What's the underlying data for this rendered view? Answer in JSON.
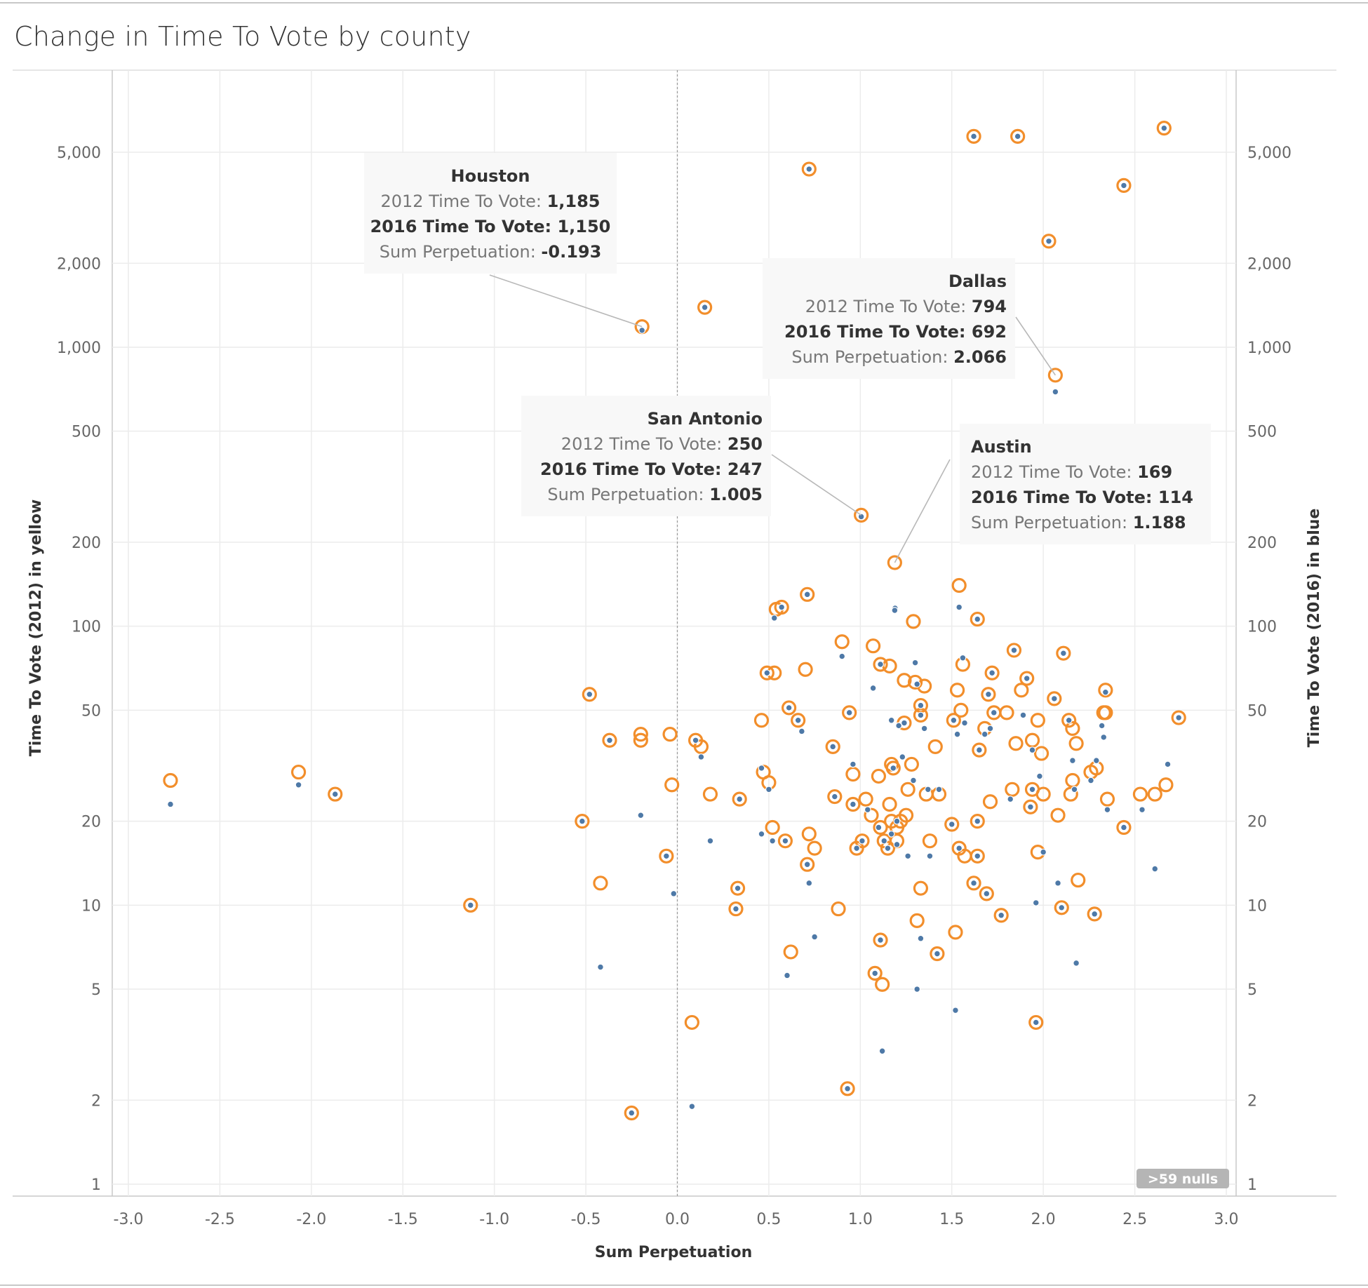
{
  "title": "Change in Time To Vote by county",
  "nulls_badge": ">59 nulls",
  "chart_data": {
    "type": "scatter",
    "title": "Change in Time To Vote by county",
    "xlabel": "Sum Perpetuation",
    "ylabel_left": "Time To Vote (2012) in yellow",
    "ylabel_right": "Time To Vote (2016) in blue",
    "x_range": [
      -3.1,
      3.05
    ],
    "y_scale": "log",
    "y_range": [
      1,
      9000
    ],
    "x_ticks": [
      -3.0,
      -2.5,
      -2.0,
      -1.5,
      -1.0,
      -0.5,
      0.0,
      0.5,
      1.0,
      1.5,
      2.0,
      2.5,
      3.0
    ],
    "x_tick_labels": [
      "-3.0",
      "-2.5",
      "-2.0",
      "-1.5",
      "-1.0",
      "-0.5",
      "0.0",
      "0.5",
      "1.0",
      "1.5",
      "2.0",
      "2.5",
      "3.0"
    ],
    "y_ticks": [
      1,
      2,
      5,
      10,
      20,
      50,
      100,
      200,
      500,
      1000,
      2000,
      5000
    ],
    "y_tick_labels": [
      "1",
      "2",
      "5",
      "10",
      "20",
      "50",
      "100",
      "200",
      "500",
      "1,000",
      "2,000",
      "5,000"
    ],
    "grid": true,
    "colors": {
      "series_2012": "#f28e2b",
      "series_2016": "#4e79a7",
      "reference_line": "#9a9a9a"
    },
    "series": [
      {
        "name": "Time To Vote (2012)",
        "marker": "ring",
        "color": "#f28e2b",
        "points": [
          [
            -2.77,
            28
          ],
          [
            -2.07,
            30
          ],
          [
            -1.87,
            25
          ],
          [
            -1.13,
            10
          ],
          [
            -0.52,
            20
          ],
          [
            -0.48,
            57
          ],
          [
            -0.42,
            12
          ],
          [
            -0.37,
            39
          ],
          [
            -0.25,
            1.8
          ],
          [
            -0.2,
            41
          ],
          [
            -0.2,
            39
          ],
          [
            -0.193,
            1185
          ],
          [
            -0.06,
            15
          ],
          [
            -0.04,
            41
          ],
          [
            -0.03,
            27
          ],
          [
            0.08,
            3.8
          ],
          [
            0.1,
            39
          ],
          [
            0.13,
            37
          ],
          [
            0.15,
            1390
          ],
          [
            0.18,
            25
          ],
          [
            0.32,
            9.7
          ],
          [
            0.33,
            11.5
          ],
          [
            0.34,
            24
          ],
          [
            0.46,
            46
          ],
          [
            0.47,
            30
          ],
          [
            0.5,
            27.5
          ],
          [
            0.49,
            68
          ],
          [
            0.53,
            68
          ],
          [
            0.52,
            19
          ],
          [
            0.54,
            115
          ],
          [
            0.57,
            117
          ],
          [
            0.59,
            17
          ],
          [
            0.61,
            51
          ],
          [
            0.66,
            46
          ],
          [
            0.7,
            70
          ],
          [
            0.71,
            130
          ],
          [
            0.71,
            14
          ],
          [
            0.72,
            18
          ],
          [
            0.75,
            16
          ],
          [
            0.72,
            4350
          ],
          [
            0.62,
            6.8
          ],
          [
            0.85,
            37
          ],
          [
            0.86,
            24.5
          ],
          [
            0.9,
            88
          ],
          [
            0.93,
            2.2
          ],
          [
            0.94,
            49
          ],
          [
            0.96,
            29.5
          ],
          [
            0.96,
            23
          ],
          [
            0.98,
            16
          ],
          [
            1.005,
            250
          ],
          [
            1.01,
            17
          ],
          [
            1.03,
            24
          ],
          [
            1.06,
            21
          ],
          [
            1.07,
            85
          ],
          [
            1.08,
            5.7
          ],
          [
            1.1,
            29
          ],
          [
            1.11,
            19
          ],
          [
            1.11,
            73
          ],
          [
            1.11,
            7.5
          ],
          [
            1.12,
            5.2
          ],
          [
            1.13,
            17
          ],
          [
            1.15,
            16
          ],
          [
            1.16,
            72
          ],
          [
            1.16,
            23
          ],
          [
            1.17,
            32
          ],
          [
            1.18,
            31
          ],
          [
            1.17,
            20
          ],
          [
            1.2,
            19
          ],
          [
            1.2,
            17
          ],
          [
            1.22,
            20
          ],
          [
            1.24,
            64
          ],
          [
            1.24,
            45
          ],
          [
            1.25,
            21
          ],
          [
            1.26,
            26
          ],
          [
            1.188,
            169
          ],
          [
            1.28,
            32
          ],
          [
            1.29,
            104
          ],
          [
            1.3,
            63
          ],
          [
            1.31,
            8.8
          ],
          [
            1.33,
            52
          ],
          [
            1.33,
            48
          ],
          [
            1.33,
            11.5
          ],
          [
            1.35,
            61
          ],
          [
            1.36,
            25
          ],
          [
            1.38,
            17
          ],
          [
            1.41,
            37
          ],
          [
            1.42,
            6.7
          ],
          [
            1.43,
            25
          ],
          [
            1.5,
            19.5
          ],
          [
            1.51,
            46
          ],
          [
            1.52,
            8
          ],
          [
            1.53,
            59
          ],
          [
            1.54,
            140
          ],
          [
            1.54,
            16
          ],
          [
            1.55,
            50
          ],
          [
            1.56,
            73
          ],
          [
            1.57,
            15
          ],
          [
            1.62,
            5700
          ],
          [
            1.62,
            12
          ],
          [
            1.64,
            15
          ],
          [
            1.64,
            20
          ],
          [
            1.64,
            106
          ],
          [
            1.65,
            36
          ],
          [
            1.68,
            43
          ],
          [
            1.69,
            11
          ],
          [
            1.7,
            57
          ],
          [
            1.71,
            23.5
          ],
          [
            1.72,
            68
          ],
          [
            1.73,
            49
          ],
          [
            1.77,
            9.2
          ],
          [
            1.8,
            49
          ],
          [
            1.83,
            26
          ],
          [
            1.85,
            38
          ],
          [
            1.86,
            5700
          ],
          [
            1.88,
            59
          ],
          [
            1.91,
            65
          ],
          [
            1.93,
            22.5
          ],
          [
            1.94,
            26
          ],
          [
            1.94,
            39
          ],
          [
            1.96,
            3.8
          ],
          [
            1.97,
            15.5
          ],
          [
            1.97,
            46
          ],
          [
            1.99,
            35
          ],
          [
            2.0,
            25
          ],
          [
            2.03,
            2400
          ],
          [
            2.06,
            55
          ],
          [
            2.066,
            794
          ],
          [
            2.08,
            21
          ],
          [
            2.1,
            9.8
          ],
          [
            2.11,
            80
          ],
          [
            2.14,
            46
          ],
          [
            2.15,
            25
          ],
          [
            2.16,
            28
          ],
          [
            2.16,
            43
          ],
          [
            2.18,
            38
          ],
          [
            2.19,
            12.3
          ],
          [
            2.26,
            30
          ],
          [
            2.28,
            9.3
          ],
          [
            2.29,
            31
          ],
          [
            2.33,
            49
          ],
          [
            2.34,
            59
          ],
          [
            2.34,
            49
          ],
          [
            2.35,
            24
          ],
          [
            2.44,
            3800
          ],
          [
            2.44,
            19
          ],
          [
            2.53,
            25
          ],
          [
            2.61,
            25
          ],
          [
            2.66,
            6100
          ],
          [
            2.67,
            27
          ],
          [
            2.74,
            47
          ],
          [
            0.88,
            9.7
          ],
          [
            1.84,
            82
          ]
        ]
      },
      {
        "name": "Time To Vote (2016)",
        "marker": "dot",
        "color": "#4e79a7",
        "points": [
          [
            -2.77,
            23
          ],
          [
            -2.07,
            27
          ],
          [
            -1.87,
            25
          ],
          [
            -1.13,
            10
          ],
          [
            -0.52,
            20
          ],
          [
            -0.48,
            57
          ],
          [
            -0.42,
            6
          ],
          [
            -0.37,
            39
          ],
          [
            -0.25,
            1.8
          ],
          [
            -0.2,
            21
          ],
          [
            -0.193,
            1150
          ],
          [
            -0.06,
            15
          ],
          [
            -0.02,
            11
          ],
          [
            0.08,
            1.9
          ],
          [
            0.1,
            39
          ],
          [
            0.13,
            34
          ],
          [
            0.15,
            1390
          ],
          [
            0.18,
            17
          ],
          [
            0.32,
            9.7
          ],
          [
            0.33,
            11.5
          ],
          [
            0.34,
            24
          ],
          [
            0.46,
            31
          ],
          [
            0.46,
            18
          ],
          [
            0.5,
            26
          ],
          [
            0.49,
            68
          ],
          [
            0.52,
            17
          ],
          [
            0.53,
            107
          ],
          [
            0.57,
            117
          ],
          [
            0.59,
            17
          ],
          [
            0.6,
            5.6
          ],
          [
            0.61,
            51
          ],
          [
            0.66,
            46
          ],
          [
            0.68,
            42
          ],
          [
            0.71,
            130
          ],
          [
            0.71,
            14
          ],
          [
            0.72,
            12
          ],
          [
            0.75,
            7.7
          ],
          [
            0.72,
            4350
          ],
          [
            0.85,
            37
          ],
          [
            0.86,
            24.5
          ],
          [
            0.9,
            78
          ],
          [
            0.93,
            2.2
          ],
          [
            0.94,
            49
          ],
          [
            0.96,
            32
          ],
          [
            0.96,
            23
          ],
          [
            0.98,
            16
          ],
          [
            1.005,
            247
          ],
          [
            1.01,
            17
          ],
          [
            1.04,
            22
          ],
          [
            1.07,
            60
          ],
          [
            1.08,
            5.7
          ],
          [
            1.1,
            19
          ],
          [
            1.11,
            73
          ],
          [
            1.11,
            7.5
          ],
          [
            1.12,
            3
          ],
          [
            1.13,
            17
          ],
          [
            1.15,
            16
          ],
          [
            1.17,
            46
          ],
          [
            1.18,
            31
          ],
          [
            1.17,
            18
          ],
          [
            1.19,
            116
          ],
          [
            1.2,
            20
          ],
          [
            1.2,
            16.5
          ],
          [
            1.21,
            44
          ],
          [
            1.23,
            34
          ],
          [
            1.24,
            45
          ],
          [
            1.26,
            15
          ],
          [
            1.188,
            114
          ],
          [
            1.29,
            28
          ],
          [
            1.3,
            74
          ],
          [
            1.31,
            62
          ],
          [
            1.31,
            5
          ],
          [
            1.33,
            48
          ],
          [
            1.33,
            52
          ],
          [
            1.33,
            7.6
          ],
          [
            1.35,
            43
          ],
          [
            1.37,
            26
          ],
          [
            1.38,
            15
          ],
          [
            1.42,
            6.7
          ],
          [
            1.43,
            26
          ],
          [
            1.5,
            19.5
          ],
          [
            1.51,
            46
          ],
          [
            1.52,
            4.2
          ],
          [
            1.53,
            41
          ],
          [
            1.54,
            117
          ],
          [
            1.54,
            16
          ],
          [
            1.56,
            77
          ],
          [
            1.57,
            45
          ],
          [
            1.62,
            5700
          ],
          [
            1.62,
            12
          ],
          [
            1.64,
            15
          ],
          [
            1.64,
            20
          ],
          [
            1.64,
            106
          ],
          [
            1.65,
            36
          ],
          [
            1.68,
            41
          ],
          [
            1.69,
            11
          ],
          [
            1.7,
            57
          ],
          [
            1.71,
            43
          ],
          [
            1.72,
            68
          ],
          [
            1.73,
            49
          ],
          [
            1.77,
            9.2
          ],
          [
            1.82,
            24
          ],
          [
            1.86,
            5700
          ],
          [
            1.89,
            48
          ],
          [
            1.91,
            65
          ],
          [
            1.93,
            22.5
          ],
          [
            1.94,
            26
          ],
          [
            1.94,
            36
          ],
          [
            1.96,
            10.2
          ],
          [
            1.96,
            3.8
          ],
          [
            1.98,
            29
          ],
          [
            2.0,
            15.5
          ],
          [
            2.03,
            2400
          ],
          [
            2.06,
            55
          ],
          [
            2.066,
            692
          ],
          [
            2.08,
            12
          ],
          [
            2.1,
            9.8
          ],
          [
            2.11,
            80
          ],
          [
            2.14,
            46
          ],
          [
            2.16,
            33
          ],
          [
            2.17,
            26
          ],
          [
            2.18,
            6.2
          ],
          [
            2.26,
            28
          ],
          [
            2.28,
            9.3
          ],
          [
            2.29,
            33
          ],
          [
            2.32,
            44
          ],
          [
            2.33,
            40
          ],
          [
            2.34,
            58
          ],
          [
            2.35,
            22
          ],
          [
            2.44,
            3800
          ],
          [
            2.44,
            19
          ],
          [
            2.54,
            22
          ],
          [
            2.61,
            13.5
          ],
          [
            2.68,
            32
          ],
          [
            2.74,
            47
          ],
          [
            2.66,
            6100
          ],
          [
            1.84,
            82
          ]
        ]
      }
    ],
    "annotations": [
      {
        "name": "Houston",
        "x": -0.193,
        "y": 1185,
        "line1_label": "2012 Time To Vote: ",
        "line1_value": "1,185",
        "line2_label": "2016 Time To Vote: ",
        "line2_value": "1,150",
        "line3_label": "Sum Perpetuation: ",
        "line3_value": "-0.193"
      },
      {
        "name": "Dallas",
        "x": 2.066,
        "y": 794,
        "line1_label": "2012 Time To Vote: ",
        "line1_value": "794",
        "line2_label": "2016 Time To Vote: ",
        "line2_value": "692",
        "line3_label": "Sum Perpetuation: ",
        "line3_value": "2.066"
      },
      {
        "name": "San Antonio",
        "x": 1.005,
        "y": 250,
        "line1_label": "2012 Time To Vote: ",
        "line1_value": "250",
        "line2_label": "2016 Time To Vote: ",
        "line2_value": "247",
        "line3_label": "Sum Perpetuation: ",
        "line3_value": "1.005"
      },
      {
        "name": "Austin",
        "x": 1.188,
        "y": 169,
        "line1_label": "2012 Time To Vote: ",
        "line1_value": "169",
        "line2_label": "2016 Time To Vote: ",
        "line2_value": "114",
        "line3_label": "Sum Perpetuation: ",
        "line3_value": "1.188"
      }
    ]
  }
}
